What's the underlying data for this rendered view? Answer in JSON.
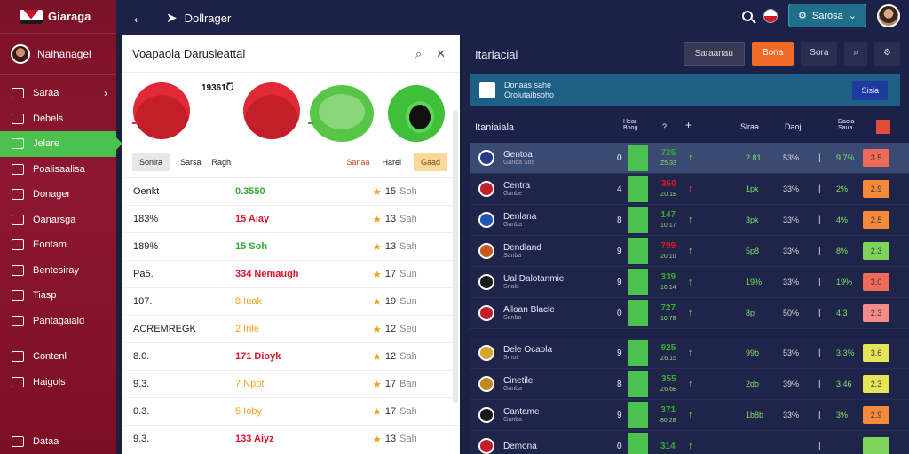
{
  "brand": "Giaraga",
  "topbar": {
    "title": "Dollrager",
    "account_label": "Sarosa"
  },
  "sidebar": {
    "user": "Nalhanagel",
    "items": [
      {
        "label": "Saraa",
        "active": false,
        "chevron": true
      },
      {
        "label": "Debels",
        "active": false
      },
      {
        "label": "Jelare",
        "active": true
      },
      {
        "label": "Poalisaalisa",
        "active": false
      },
      {
        "label": "Donager",
        "active": false
      },
      {
        "label": "Oanarsga",
        "active": false
      },
      {
        "label": "Eontam",
        "active": false
      },
      {
        "label": "Bentesiray",
        "active": false
      },
      {
        "label": "Tiasp",
        "active": false
      },
      {
        "label": "Pantagaiald",
        "active": false
      },
      {
        "label": "Contenl",
        "active": false
      },
      {
        "label": "Haigols",
        "active": false
      }
    ],
    "bottom": "Dataa"
  },
  "left": {
    "title": "Voapaola Darusleattal",
    "score_a": "19361Ⴀ",
    "tabs": [
      "Sonira",
      "Sarsa",
      "Ragh"
    ],
    "right_tabs": [
      "Sanaa",
      "Harel",
      "Gaad"
    ],
    "rows": [
      {
        "a": "Oenkt",
        "b": "0.3550",
        "b_color": "green",
        "c_num": "15",
        "c_txt": "Soh"
      },
      {
        "a": "183%",
        "b": "15 Aiay",
        "b_color": "red",
        "c_num": "13",
        "c_txt": "Sah"
      },
      {
        "a": "189%",
        "b": "15 Soh",
        "b_color": "green",
        "c_num": "13",
        "c_txt": "Sah"
      },
      {
        "a": "Pa5.",
        "b": "334 Nemaugh",
        "b_color": "red",
        "c_num": "17",
        "c_txt": "Sun"
      },
      {
        "a": "107.",
        "b": "8 Iuak",
        "b_color": "star",
        "c_num": "19",
        "c_txt": "Sun"
      },
      {
        "a": "ACREMREGK",
        "b": "2 Inle",
        "b_color": "star",
        "c_num": "12",
        "c_txt": "Seu"
      },
      {
        "a": "8.0.",
        "b": "171 Dioyk",
        "b_color": "red",
        "c_num": "12",
        "c_txt": "Sah"
      },
      {
        "a": "9.3.",
        "b": "7 Npot",
        "b_color": "star",
        "c_num": "17",
        "c_txt": "Ban"
      },
      {
        "a": "0.3.",
        "b": "5 Ioby",
        "b_color": "star",
        "c_num": "17",
        "c_txt": "Sah"
      },
      {
        "a": "9.3.",
        "b": "133 Aiyz",
        "b_color": "red",
        "c_num": "13",
        "c_txt": "Sah"
      }
    ]
  },
  "right": {
    "title": "Itarlacial",
    "buttons": [
      "Saraanau",
      "Bona",
      "Sora"
    ],
    "info": "Donaas sahe\nOrolutaibsoho",
    "info_button": "Sisla",
    "table_title": "Itaniaiala",
    "headers": [
      "Hear\nBoog",
      "Siraa",
      "Daoj",
      "Daoja\nSaua"
    ],
    "matches": [
      {
        "name": "Gentoa",
        "sub": "Ganba Sos",
        "score": "0",
        "odd": "725",
        "odd_sub": "Z5.33",
        "odd_color": "green",
        "arrow": "up-green",
        "c5": "2.81",
        "c6": "53%",
        "c8": "9.7%",
        "pill": "3.5",
        "pill_color": "#f06a5a",
        "highlight": true
      },
      {
        "name": "Centra",
        "sub": "Ganbe",
        "score": "4",
        "odd": "350",
        "odd_sub": "Z0.1B",
        "odd_color": "red",
        "arrow": "up-red",
        "c5": "1pk",
        "c6": "33%",
        "c8": "2%",
        "pill": "2.9",
        "pill_color": "#f58a3a"
      },
      {
        "name": "Denlana",
        "sub": "Ganba",
        "score": "8",
        "odd": "147",
        "odd_sub": "10.17",
        "odd_color": "green",
        "arrow": "up-green",
        "c5": "3pk",
        "c6": "33%",
        "c8": "4%",
        "pill": "2.5",
        "pill_color": "#f58a3a"
      },
      {
        "name": "Dendland",
        "sub": "Sanba",
        "score": "9",
        "odd": "799",
        "odd_sub": "20.10",
        "odd_color": "red",
        "arrow": "up-green",
        "c5": "5p8",
        "c6": "33%",
        "c8": "8%",
        "pill": "2.3",
        "pill_color": "#7ed35a"
      },
      {
        "name": "Ual Dalotanmie",
        "sub": "Snale",
        "score": "9",
        "odd": "339",
        "odd_sub": "10.14",
        "odd_color": "green",
        "arrow": "up-green",
        "c5": "19%",
        "c6": "33%",
        "c8": "19%",
        "pill": "3.0",
        "pill_color": "#f06a5a"
      },
      {
        "name": "Alloan Blacle",
        "sub": "Sanba",
        "score": "0",
        "odd": "727",
        "odd_sub": "10.78",
        "odd_color": "green",
        "arrow": "up-green",
        "c5": "8p",
        "c6": "50%",
        "c8": "4.3",
        "pill": "2.3",
        "pill_color": "#f58a8a"
      },
      {
        "name": "Dele Ocaola",
        "sub": "Smot",
        "score": "9",
        "odd": "925",
        "odd_sub": "Z6.15",
        "odd_color": "green",
        "arrow": "up-green",
        "c5": "99b",
        "c6": "53%",
        "c8": "3.3%",
        "pill": "3.6",
        "pill_color": "#e5e55a",
        "sep": true
      },
      {
        "name": "Cinetile",
        "sub": "Ganba",
        "score": "8",
        "odd": "355",
        "odd_sub": "Z6.6B",
        "odd_color": "green",
        "arrow": "up-green",
        "c5": "2do",
        "c6": "39%",
        "c8": "3.46",
        "pill": "2.3",
        "pill_color": "#e5e55a"
      },
      {
        "name": "Cantame",
        "sub": "Ganba",
        "score": "9",
        "odd": "371",
        "odd_sub": "80.28",
        "odd_color": "green",
        "arrow": "up-green",
        "c5": "1b8b",
        "c6": "33%",
        "c8": "3%",
        "pill": "2.9",
        "pill_color": "#f58a3a"
      },
      {
        "name": "Demona",
        "sub": "",
        "score": "0",
        "odd": "314",
        "odd_sub": "",
        "odd_color": "green",
        "arrow": "up-green",
        "c5": "",
        "c6": "",
        "c8": "",
        "pill": "",
        "pill_color": "#7ed35a"
      }
    ]
  }
}
